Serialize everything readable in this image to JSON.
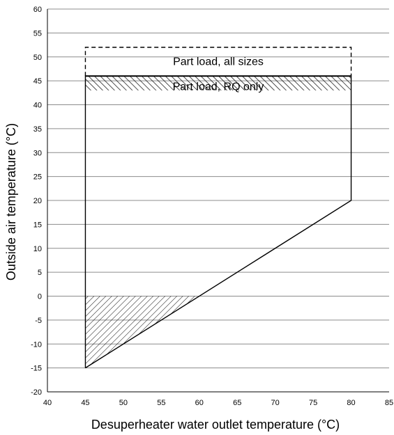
{
  "chart_data": {
    "type": "area",
    "title": "",
    "xlabel": "Desuperheater water outlet temperature (°C)",
    "ylabel": "Outside air temperature (°C)",
    "xlim": [
      40,
      85
    ],
    "ylim": [
      -20,
      60
    ],
    "x_ticks": [
      40,
      45,
      50,
      55,
      60,
      65,
      70,
      75,
      80,
      85
    ],
    "y_ticks": [
      -20,
      -15,
      -10,
      -5,
      0,
      5,
      10,
      15,
      20,
      25,
      30,
      35,
      40,
      45,
      50,
      55,
      60
    ],
    "grid": "horizontal",
    "legend": "none",
    "regions": [
      {
        "name": "operating-envelope",
        "style": "solid outline",
        "points": [
          [
            45,
            -15
          ],
          [
            45,
            46
          ],
          [
            80,
            46
          ],
          [
            80,
            20
          ],
          [
            45,
            -15
          ]
        ]
      },
      {
        "name": "part-load-all-sizes",
        "style": "dashed outline",
        "points": [
          [
            45,
            46
          ],
          [
            45,
            52
          ],
          [
            80,
            52
          ],
          [
            80,
            46
          ]
        ]
      },
      {
        "name": "part-load-rq-only",
        "style": "hatched band",
        "points": [
          [
            45,
            43
          ],
          [
            80,
            43
          ],
          [
            80,
            46
          ],
          [
            45,
            46
          ]
        ]
      },
      {
        "name": "lower-left-hatched-zone",
        "style": "hatched triangle",
        "points": [
          [
            45,
            0
          ],
          [
            60,
            0
          ],
          [
            45,
            -15
          ]
        ]
      }
    ],
    "annotations": [
      {
        "text": "Part load, all sizes",
        "x": 62.5,
        "y": 49
      },
      {
        "text": "Part load, RQ only",
        "x": 62.5,
        "y": 43.8
      }
    ]
  },
  "colors": {
    "axis": "#000000",
    "grid": "#8c8c8c",
    "lines": "#000000",
    "hatch": "#000000",
    "background": "#ffffff"
  }
}
